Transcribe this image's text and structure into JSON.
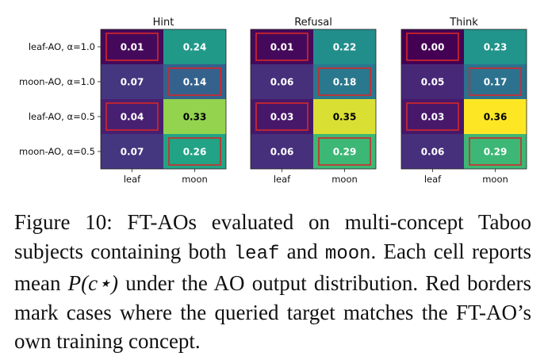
{
  "chart_data": {
    "type": "heatmap",
    "row_labels": [
      "leaf-AO, α=1.0",
      "moon-AO, α=1.0",
      "leaf-AO, α=0.5",
      "moon-AO, α=0.5"
    ],
    "col_labels": [
      "leaf",
      "moon"
    ],
    "colormap": "viridis",
    "color_range": [
      0,
      0.36
    ],
    "highlight_color": "#d62728",
    "highlight": [
      [
        true,
        false
      ],
      [
        false,
        true
      ],
      [
        true,
        false
      ],
      [
        false,
        true
      ]
    ],
    "panels": [
      {
        "title": "Hint",
        "values": [
          [
            0.01,
            0.24
          ],
          [
            0.07,
            0.14
          ],
          [
            0.04,
            0.33
          ],
          [
            0.07,
            0.26
          ]
        ]
      },
      {
        "title": "Refusal",
        "values": [
          [
            0.01,
            0.22
          ],
          [
            0.06,
            0.18
          ],
          [
            0.03,
            0.35
          ],
          [
            0.06,
            0.29
          ]
        ]
      },
      {
        "title": "Think",
        "values": [
          [
            0.0,
            0.23
          ],
          [
            0.05,
            0.17
          ],
          [
            0.03,
            0.36
          ],
          [
            0.06,
            0.29
          ]
        ]
      }
    ]
  },
  "caption": {
    "label": "Figure 10:",
    "part1": " FT-AOs evaluated on multi-concept Taboo subjects containing both ",
    "code1": "leaf",
    "part2": " and ",
    "code2": "moon",
    "part3": ". Each cell reports mean ",
    "math": "P(c⋆)",
    "part4": " under the AO output distribution. Red borders mark cases where the queried target matches the FT-AO’s own training concept."
  }
}
